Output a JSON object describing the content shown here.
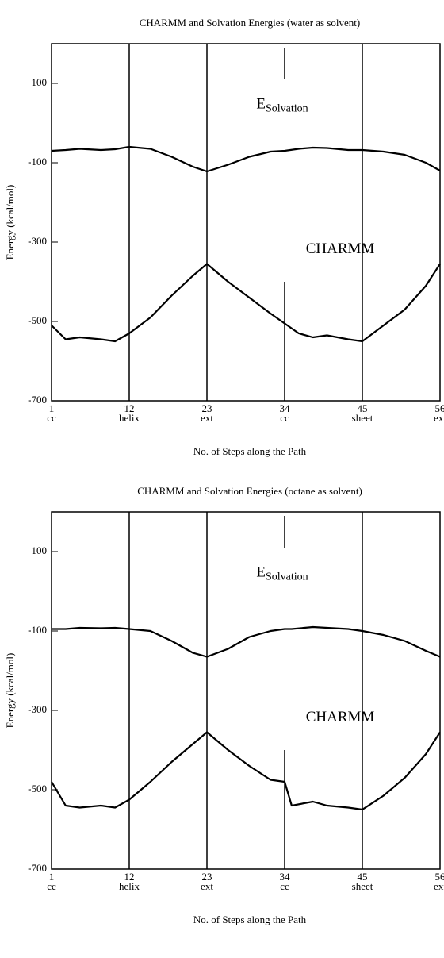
{
  "chart_data": [
    {
      "type": "line",
      "title": "CHARMM and Solvation Energies (water as solvent)",
      "x_label": "No. of Steps along the Path",
      "y_label": "Energy  (kcal/mol)",
      "x": [
        1,
        3,
        5,
        8,
        10,
        12,
        15,
        18,
        21,
        23,
        26,
        29,
        32,
        34,
        36,
        38,
        40,
        43,
        45,
        48,
        51,
        54,
        56
      ],
      "series": [
        {
          "color": "#000000",
          "values": [
            -70,
            -68,
            -65,
            -68,
            -66,
            -60,
            -65,
            -85,
            -110,
            -122,
            -105,
            -85,
            -72,
            -70,
            -65,
            -62,
            -63,
            -68,
            -68,
            -72,
            -80,
            -100,
            -120
          ]
        },
        {
          "color": "#000000",
          "values": [
            -510,
            -545,
            -540,
            -545,
            -550,
            -530,
            -490,
            -435,
            -385,
            -355,
            -400,
            -440,
            -480,
            -505,
            -530,
            -540,
            -535,
            -545,
            -550,
            -510,
            -470,
            -410,
            -355
          ]
        }
      ],
      "annotations": [
        {
          "text": "E",
          "subscript": "Solvation"
        },
        {
          "text": "CHARMM"
        }
      ],
      "xlim": [
        1,
        56
      ],
      "xticks": [
        1,
        12,
        23,
        34,
        45,
        56
      ],
      "xtick_sublabels": [
        "cc",
        "helix",
        "ext",
        "cc",
        "sheet",
        "ext"
      ],
      "ylim": [
        -700,
        200
      ],
      "yticks": [
        100,
        -100,
        -300,
        -500,
        -700
      ]
    },
    {
      "type": "line",
      "title": "CHARMM and Solvation Energies (octane as solvent)",
      "x_label": "No. of Steps along the Path",
      "y_label": "Energy  (kcal/mol)",
      "x": [
        1,
        3,
        5,
        8,
        10,
        12,
        15,
        18,
        21,
        23,
        26,
        29,
        32,
        34,
        35,
        38,
        40,
        43,
        45,
        48,
        51,
        54,
        56
      ],
      "series": [
        {
          "color": "#000000",
          "values": [
            -95,
            -95,
            -92,
            -93,
            -92,
            -95,
            -100,
            -125,
            -155,
            -165,
            -145,
            -115,
            -100,
            -95,
            -95,
            -90,
            -92,
            -95,
            -100,
            -110,
            -125,
            -150,
            -165
          ]
        },
        {
          "color": "#000000",
          "values": [
            -480,
            -540,
            -545,
            -540,
            -545,
            -525,
            -480,
            -430,
            -385,
            -355,
            -400,
            -440,
            -475,
            -480,
            -540,
            -530,
            -540,
            -545,
            -550,
            -515,
            -470,
            -410,
            -355
          ]
        }
      ],
      "annotations": [
        {
          "text": "E",
          "subscript": "Solvation"
        },
        {
          "text": "CHARMM"
        }
      ],
      "xlim": [
        1,
        56
      ],
      "xticks": [
        1,
        12,
        23,
        34,
        45,
        56
      ],
      "xtick_sublabels": [
        "cc",
        "helix",
        "ext",
        "cc",
        "sheet",
        "ext"
      ],
      "ylim": [
        -700,
        200
      ],
      "yticks": [
        100,
        -100,
        -300,
        -500,
        -700
      ]
    }
  ]
}
